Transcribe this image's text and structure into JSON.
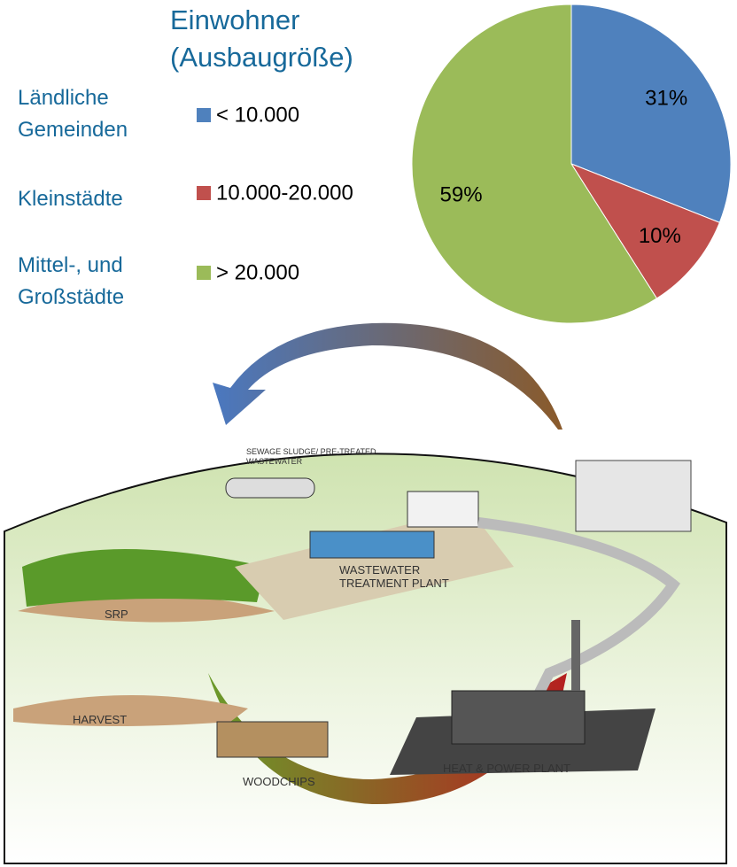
{
  "chart_data": {
    "type": "pie",
    "title": "Einwohner (Ausbaugröße)",
    "categories": [
      "< 10.000",
      "10.000-20.000",
      "> 20.000"
    ],
    "group_labels": [
      "Ländliche Gemeinden",
      "Kleinstädte",
      "Mittel-, und Großstädte"
    ],
    "values": [
      31,
      10,
      59
    ],
    "value_labels": [
      "31%",
      "10%",
      "59%"
    ],
    "colors": [
      "#4f81bd",
      "#c0504d",
      "#9bbb59"
    ]
  },
  "illustration": {
    "labels": [
      "SEWAGE SLUDGE/ PRE-TREATED WASTEWATER",
      "WASTEWATER TREATMENT PLANT",
      "SRP",
      "HARVEST",
      "WOODCHIPS",
      "HEAT & POWER PLANT"
    ]
  }
}
